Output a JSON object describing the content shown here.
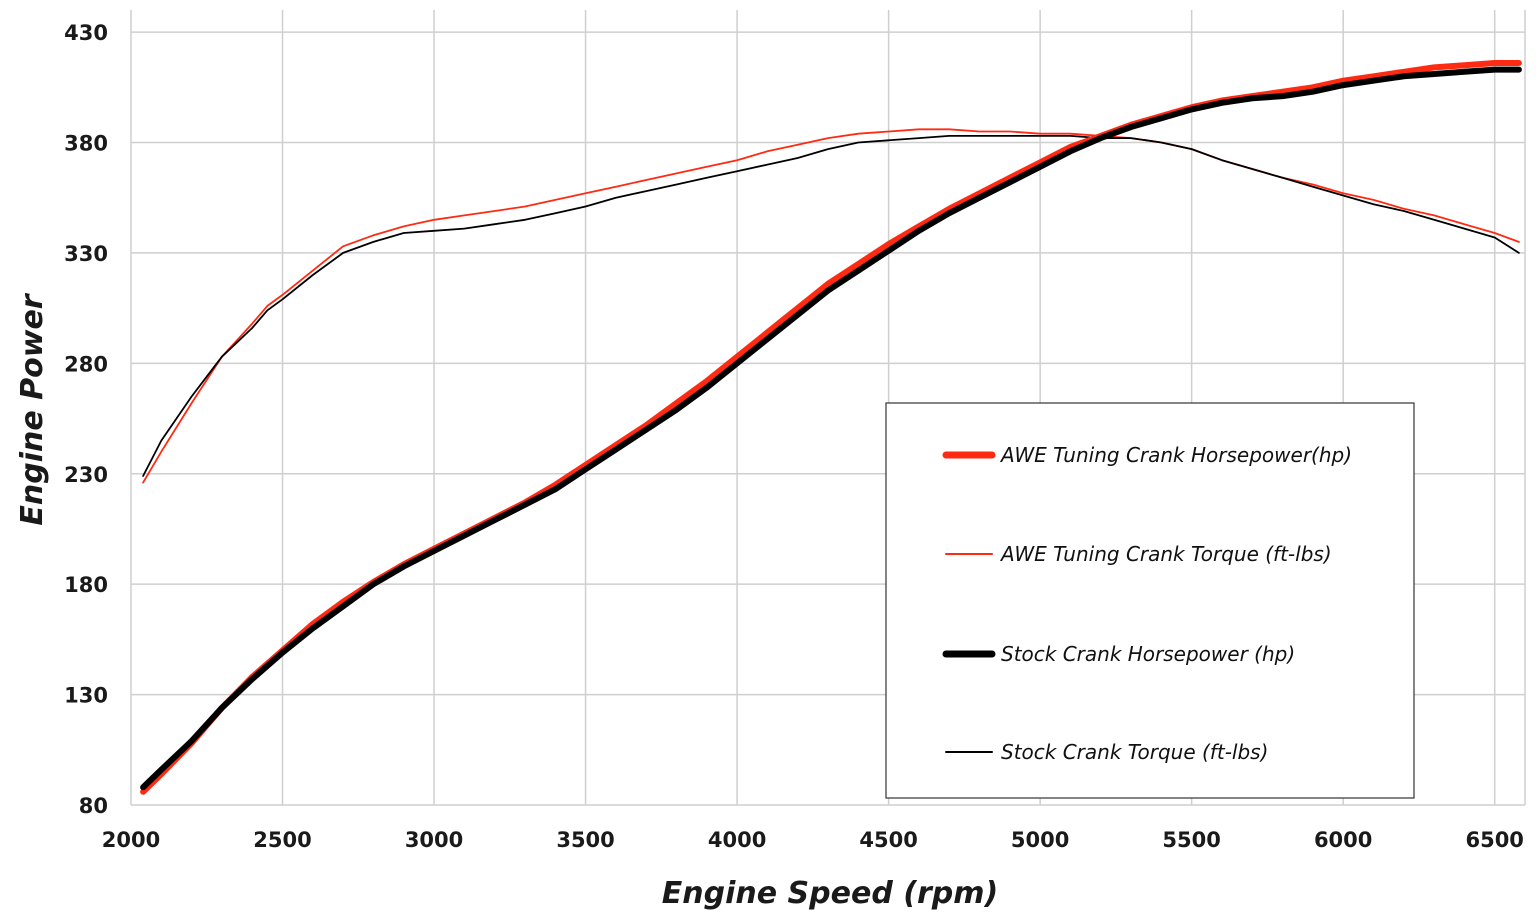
{
  "chart_data": {
    "type": "line",
    "xlabel": "Engine Speed (rpm)",
    "ylabel": "Engine Power",
    "xlim": [
      2000,
      6600
    ],
    "ylim": [
      80,
      440
    ],
    "x_ticks": [
      2000,
      2500,
      3000,
      3500,
      4000,
      4500,
      5000,
      5500,
      6000,
      6500
    ],
    "y_ticks": [
      80,
      130,
      180,
      230,
      280,
      330,
      380,
      430
    ],
    "x_tick_labels": [
      "2000",
      "2500",
      "3000",
      "3500",
      "4000",
      "4500",
      "5000",
      "5500",
      "6000",
      "6500"
    ],
    "y_tick_labels": [
      "80",
      "130",
      "180",
      "230",
      "280",
      "330",
      "380",
      "430"
    ],
    "grid": true,
    "legend_position": "bottom-right",
    "series": [
      {
        "name": "AWE Tuning Crank Horsepower(hp)",
        "color": "#ff2a12",
        "style": "thick",
        "x": [
          2040,
          2100,
          2200,
          2300,
          2400,
          2500,
          2600,
          2700,
          2800,
          2900,
          3000,
          3100,
          3200,
          3300,
          3400,
          3500,
          3600,
          3700,
          3800,
          3900,
          4000,
          4100,
          4200,
          4300,
          4400,
          4500,
          4600,
          4700,
          4800,
          4900,
          5000,
          5100,
          5200,
          5300,
          5400,
          5500,
          5600,
          5700,
          5800,
          5900,
          6000,
          6100,
          6200,
          6300,
          6400,
          6500,
          6580
        ],
        "y": [
          86,
          94,
          108,
          124,
          138,
          150,
          162,
          172,
          181,
          189,
          196,
          203,
          210,
          217,
          225,
          234,
          243,
          252,
          262,
          272,
          283,
          294,
          305,
          316,
          325,
          334,
          342,
          350,
          357,
          364,
          371,
          378,
          383,
          388,
          392,
          396,
          399,
          401,
          403,
          405,
          408,
          410,
          412,
          414,
          415,
          416,
          416
        ]
      },
      {
        "name": "AWE Tuning Crank Torque (ft-lbs)",
        "color": "#ff2a12",
        "style": "thin",
        "x": [
          2040,
          2100,
          2200,
          2300,
          2400,
          2450,
          2500,
          2600,
          2700,
          2800,
          2900,
          3000,
          3100,
          3200,
          3300,
          3400,
          3500,
          3600,
          3700,
          3800,
          3900,
          4000,
          4100,
          4200,
          4300,
          4400,
          4500,
          4600,
          4700,
          4800,
          4900,
          5000,
          5100,
          5200,
          5300,
          5400,
          5500,
          5600,
          5700,
          5800,
          5900,
          6000,
          6100,
          6200,
          6300,
          6400,
          6500,
          6580
        ],
        "y": [
          226,
          240,
          262,
          283,
          298,
          306,
          311,
          322,
          333,
          338,
          342,
          345,
          347,
          349,
          351,
          354,
          357,
          360,
          363,
          366,
          369,
          372,
          376,
          379,
          382,
          384,
          385,
          386,
          386,
          385,
          385,
          384,
          384,
          383,
          382,
          380,
          377,
          372,
          368,
          364,
          361,
          357,
          354,
          350,
          347,
          343,
          339,
          335
        ]
      },
      {
        "name": "Stock Crank Horsepower (hp)",
        "color": "#000000",
        "style": "thick",
        "x": [
          2040,
          2100,
          2200,
          2300,
          2400,
          2500,
          2600,
          2700,
          2800,
          2900,
          3000,
          3100,
          3200,
          3300,
          3400,
          3500,
          3600,
          3700,
          3800,
          3900,
          4000,
          4100,
          4200,
          4300,
          4400,
          4500,
          4600,
          4700,
          4800,
          4900,
          5000,
          5100,
          5200,
          5300,
          5400,
          5500,
          5600,
          5700,
          5800,
          5900,
          6000,
          6100,
          6200,
          6300,
          6400,
          6500,
          6580
        ],
        "y": [
          88,
          96,
          109,
          124,
          137,
          149,
          160,
          170,
          180,
          188,
          195,
          202,
          209,
          216,
          223,
          232,
          241,
          250,
          259,
          269,
          280,
          291,
          302,
          313,
          322,
          331,
          340,
          348,
          355,
          362,
          369,
          376,
          382,
          387,
          391,
          395,
          398,
          400,
          401,
          403,
          406,
          408,
          410,
          411,
          412,
          413,
          413
        ]
      },
      {
        "name": "Stock Crank Torque (ft-lbs)",
        "color": "#000000",
        "style": "thin",
        "x": [
          2040,
          2100,
          2200,
          2300,
          2400,
          2450,
          2500,
          2600,
          2700,
          2800,
          2900,
          3000,
          3100,
          3200,
          3300,
          3400,
          3500,
          3600,
          3700,
          3800,
          3900,
          4000,
          4100,
          4200,
          4300,
          4400,
          4500,
          4600,
          4700,
          4800,
          4900,
          5000,
          5100,
          5200,
          5300,
          5400,
          5500,
          5600,
          5700,
          5800,
          5900,
          6000,
          6100,
          6200,
          6300,
          6400,
          6500,
          6580
        ],
        "y": [
          229,
          245,
          265,
          283,
          296,
          304,
          309,
          320,
          330,
          335,
          339,
          340,
          341,
          343,
          345,
          348,
          351,
          355,
          358,
          361,
          364,
          367,
          370,
          373,
          377,
          380,
          381,
          382,
          383,
          383,
          383,
          383,
          383,
          382,
          382,
          380,
          377,
          372,
          368,
          364,
          360,
          356,
          352,
          349,
          345,
          341,
          337,
          330
        ]
      }
    ]
  }
}
